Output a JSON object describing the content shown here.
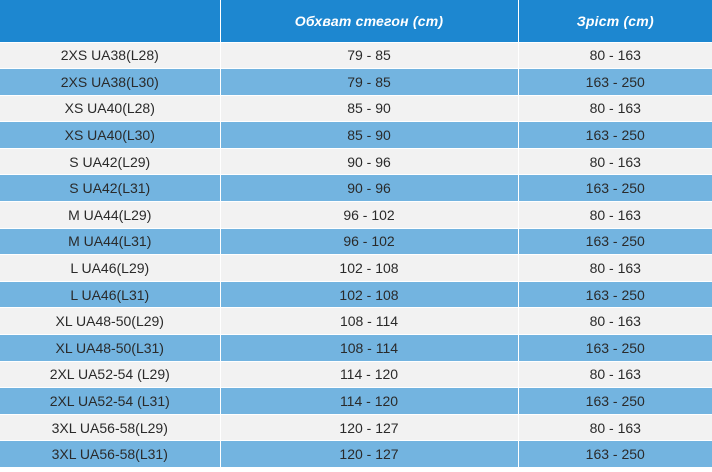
{
  "table": {
    "headers": [
      "",
      "Обхват стегон (cm)",
      "Зріст (cm)"
    ],
    "rows": [
      [
        "2XS UA38(L28)",
        "79 - 85",
        "80 - 163"
      ],
      [
        "2XS UA38(L30)",
        "79 - 85",
        "163 - 250"
      ],
      [
        "XS UA40(L28)",
        "85 - 90",
        "80 - 163"
      ],
      [
        "XS UA40(L30)",
        "85 - 90",
        "163 - 250"
      ],
      [
        "S UA42(L29)",
        "90 - 96",
        "80 - 163"
      ],
      [
        "S UA42(L31)",
        "90 - 96",
        "163 - 250"
      ],
      [
        "M UA44(L29)",
        "96 - 102",
        "80 - 163"
      ],
      [
        "M UA44(L31)",
        "96 - 102",
        "163 - 250"
      ],
      [
        "L UA46(L29)",
        "102 - 108",
        "80 - 163"
      ],
      [
        "L UA46(L31)",
        "102 - 108",
        "163 - 250"
      ],
      [
        "XL UA48-50(L29)",
        "108 - 114",
        "80 - 163"
      ],
      [
        "XL UA48-50(L31)",
        "108 - 114",
        "163 - 250"
      ],
      [
        "2XL UA52-54 (L29)",
        "114 - 120",
        "80 - 163"
      ],
      [
        "2XL UA52-54 (L31)",
        "114 - 120",
        "163 - 250"
      ],
      [
        "3XL UA56-58(L29)",
        "120 - 127",
        "80 - 163"
      ],
      [
        "3XL UA56-58(L31)",
        "120 - 127",
        "163 - 250"
      ]
    ]
  },
  "colors": {
    "header_bg": "#1d87d0",
    "header_text": "#ffffff",
    "row_light": "#f2f2f2",
    "row_blue": "#73b4e0",
    "cell_text": "#2a2a2a"
  }
}
